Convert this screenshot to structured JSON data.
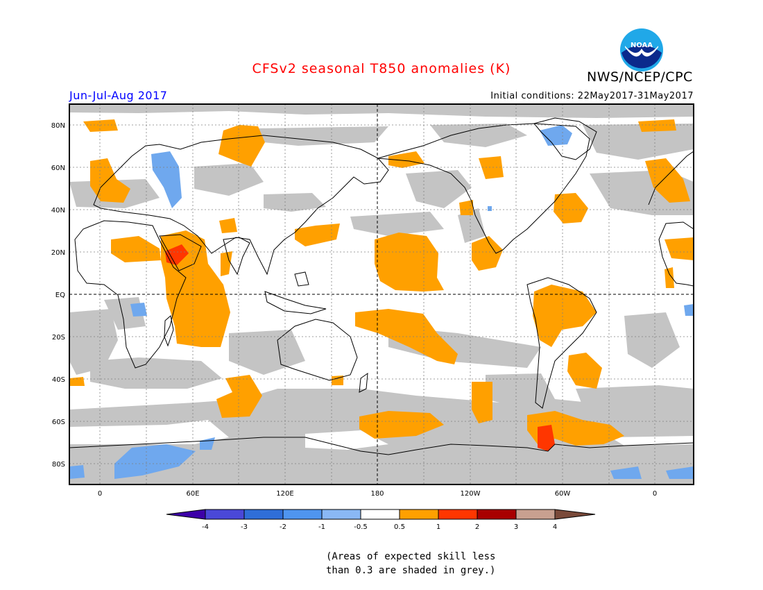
{
  "header": {
    "title": "CFSv2 seasonal T850 anomalies (K)",
    "organization": "NWS/NCEP/CPC",
    "season": "Jun-Jul-Aug 2017",
    "initial_conditions": "Initial conditions: 22May2017-31May2017",
    "logo_text": "NOAA"
  },
  "map": {
    "lat_labels": [
      "80N",
      "60N",
      "40N",
      "20N",
      "EQ",
      "20S",
      "40S",
      "60S",
      "80S"
    ],
    "lon_labels": [
      "0",
      "60E",
      "120E",
      "180",
      "120W",
      "60W",
      "0"
    ]
  },
  "colorbar": {
    "labels": [
      "-4",
      "-3",
      "-2",
      "-1",
      "-0.5",
      "0.5",
      "1",
      "2",
      "3",
      "4"
    ],
    "colors": [
      "#3d00a8",
      "#4a48d8",
      "#2f6ed8",
      "#4f95ef",
      "#8ab8f5",
      "#ffffff",
      "#ffa000",
      "#ff3600",
      "#a80000",
      "#c8a090",
      "#7a4a3a"
    ]
  },
  "colors": {
    "positive_anomaly": "#ffa000",
    "strong_positive_anomaly": "#ff3600",
    "negative_anomaly": "#6fa8ee",
    "low_skill_grey": "#c4c4c4"
  },
  "footnote": {
    "line1": "(Areas of expected skill less",
    "line2": "than 0.3 are shaded in grey.)"
  }
}
